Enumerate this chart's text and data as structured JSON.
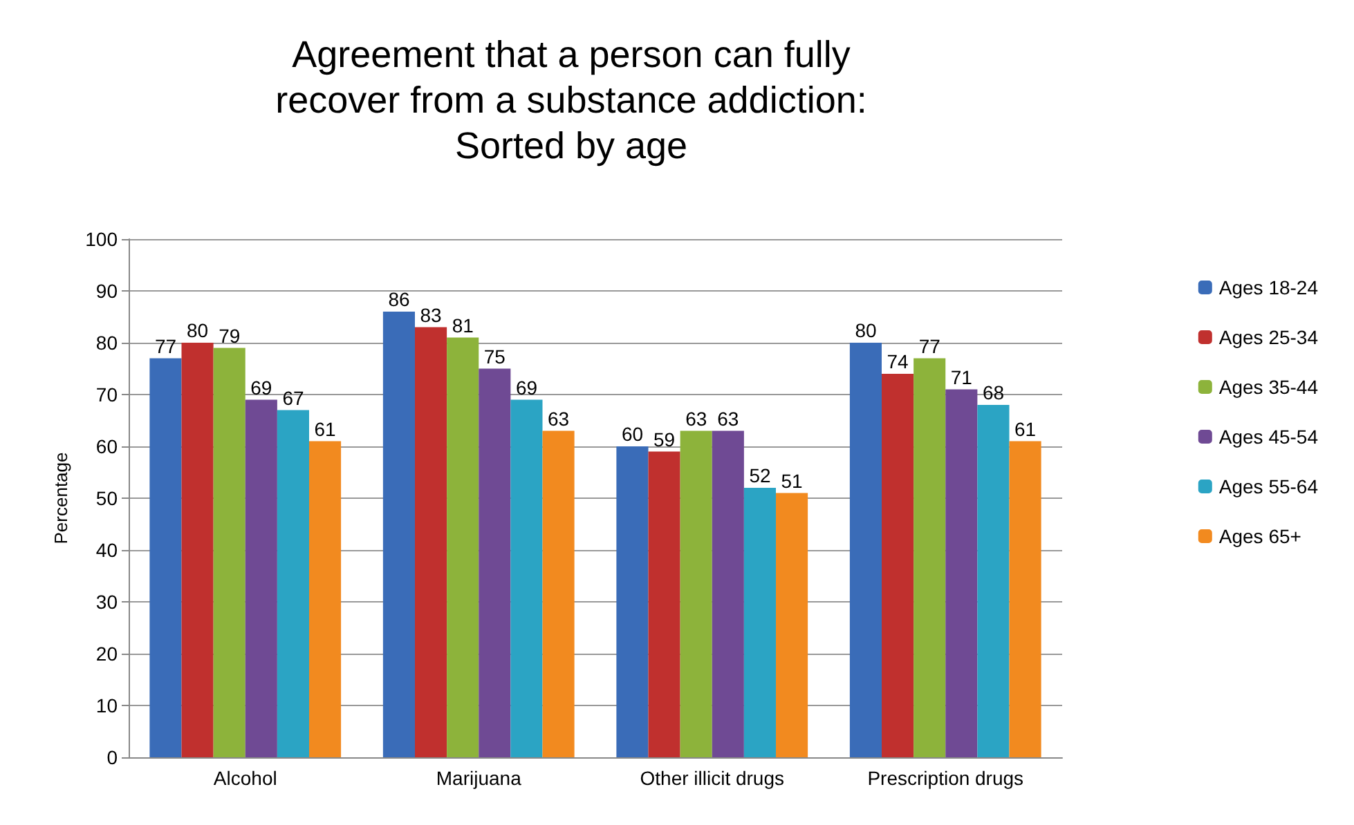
{
  "chart_data": {
    "type": "bar",
    "title": "Agreement that a person can fully\nrecover from a substance addiction:\nSorted by age",
    "ylabel": "Percentage",
    "categories": [
      "Alcohol",
      "Marijuana",
      "Other illicit drugs",
      "Prescription drugs"
    ],
    "series": [
      {
        "name": "Ages 18-24",
        "color": "#3a6cb8",
        "values": [
          77,
          86,
          60,
          80
        ]
      },
      {
        "name": "Ages 25-34",
        "color": "#c0302e",
        "values": [
          80,
          83,
          59,
          74
        ]
      },
      {
        "name": "Ages 35-44",
        "color": "#8db33b",
        "values": [
          79,
          81,
          63,
          77
        ]
      },
      {
        "name": "Ages 45-54",
        "color": "#6f4a94",
        "values": [
          69,
          75,
          63,
          71
        ]
      },
      {
        "name": "Ages 55-64",
        "color": "#2ba4c4",
        "values": [
          67,
          69,
          52,
          68
        ]
      },
      {
        "name": "Ages 65+",
        "color": "#f28a1f",
        "values": [
          61,
          63,
          51,
          61
        ]
      }
    ],
    "ylim": [
      0,
      100
    ],
    "yticks": [
      0,
      10,
      20,
      30,
      40,
      50,
      60,
      70,
      80,
      90,
      100
    ],
    "grid": "y",
    "legend": "right",
    "data_labels": true
  }
}
